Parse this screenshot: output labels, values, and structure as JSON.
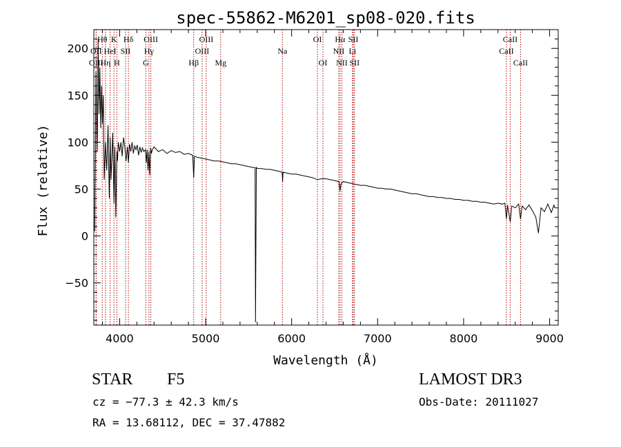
{
  "chart_data": {
    "type": "line",
    "title": "spec-55862-M6201_sp08-020.fits",
    "xlabel": "Wavelength (Å)",
    "ylabel": "Flux (relative)",
    "xlim": [
      3700,
      9100
    ],
    "ylim": [
      -95,
      220
    ],
    "x_ticks": [
      4000,
      5000,
      6000,
      7000,
      8000,
      9000
    ],
    "y_ticks": [
      -50,
      0,
      50,
      100,
      150,
      200
    ],
    "grid": false,
    "series": [
      {
        "name": "spectrum",
        "x": [
          3710,
          3725,
          3740,
          3750,
          3760,
          3770,
          3780,
          3790,
          3800,
          3810,
          3820,
          3835,
          3850,
          3865,
          3880,
          3890,
          3900,
          3910,
          3920,
          3934,
          3945,
          3955,
          3968,
          3975,
          3985,
          4000,
          4015,
          4030,
          4045,
          4060,
          4075,
          4090,
          4102,
          4115,
          4130,
          4145,
          4160,
          4175,
          4190,
          4205,
          4220,
          4235,
          4250,
          4265,
          4280,
          4300,
          4310,
          4320,
          4330,
          4340,
          4350,
          4360,
          4370,
          4380,
          4400,
          4450,
          4500,
          4550,
          4600,
          4650,
          4700,
          4750,
          4800,
          4850,
          4861,
          4870,
          4900,
          4950,
          5000,
          5050,
          5100,
          5150,
          5200,
          5250,
          5300,
          5350,
          5400,
          5450,
          5500,
          5550,
          5575,
          5580,
          5590,
          5600,
          5650,
          5700,
          5750,
          5800,
          5850,
          5890,
          5895,
          5900,
          5950,
          6000,
          6050,
          6100,
          6150,
          6200,
          6250,
          6300,
          6350,
          6400,
          6450,
          6500,
          6550,
          6563,
          6575,
          6600,
          6650,
          6700,
          6750,
          6800,
          6850,
          6900,
          6950,
          7000,
          7050,
          7100,
          7150,
          7200,
          7250,
          7300,
          7350,
          7400,
          7450,
          7500,
          7550,
          7600,
          7650,
          7700,
          7750,
          7800,
          7850,
          7900,
          7950,
          8000,
          8050,
          8100,
          8150,
          8200,
          8250,
          8300,
          8350,
          8400,
          8450,
          8480,
          8498,
          8510,
          8542,
          8560,
          8600,
          8640,
          8662,
          8680,
          8720,
          8760,
          8800,
          8840,
          8870,
          8900,
          8940,
          8980,
          9020,
          9050,
          9060
        ],
        "values": [
          5,
          175,
          90,
          210,
          130,
          180,
          115,
          160,
          120,
          150,
          60,
          100,
          70,
          118,
          40,
          105,
          60,
          85,
          110,
          35,
          95,
          20,
          90,
          80,
          100,
          90,
          100,
          85,
          105,
          95,
          80,
          95,
          78,
          98,
          90,
          100,
          88,
          96,
          92,
          97,
          86,
          95,
          89,
          94,
          90,
          92,
          78,
          92,
          70,
          90,
          65,
          94,
          88,
          92,
          95,
          90,
          92,
          88,
          91,
          89,
          90,
          87,
          88,
          86,
          62,
          85,
          84,
          83,
          82,
          81,
          80,
          80,
          79,
          78,
          77,
          77,
          76,
          75,
          74,
          73,
          73,
          -92,
          73,
          72,
          72,
          71,
          71,
          70,
          69,
          68,
          58,
          68,
          67,
          66,
          66,
          65,
          64,
          63,
          62,
          60,
          61,
          61,
          60,
          59,
          58,
          48,
          56,
          58,
          57,
          56,
          55,
          54,
          54,
          53,
          52,
          51,
          51,
          50,
          50,
          49,
          48,
          47,
          46,
          45,
          45,
          44,
          43,
          42,
          42,
          41,
          41,
          40,
          40,
          39,
          39,
          38,
          38,
          37,
          37,
          36,
          36,
          35,
          34,
          35,
          34,
          35,
          18,
          33,
          15,
          32,
          30,
          34,
          18,
          32,
          28,
          33,
          27,
          20,
          3,
          30,
          26,
          34,
          25,
          33,
          30
        ]
      }
    ],
    "line_markers": [
      {
        "label": "Hθ",
        "wavelength": 3798,
        "row": 1
      },
      {
        "label": "K",
        "wavelength": 3934,
        "row": 1
      },
      {
        "label": "Hδ",
        "wavelength": 4102,
        "row": 1
      },
      {
        "label": "OII",
        "wavelength": 3727,
        "row": 2
      },
      {
        "label": "HeI",
        "wavelength": 3889,
        "row": 2
      },
      {
        "label": "SII",
        "wavelength": 4069,
        "row": 2
      },
      {
        "label": "OIII",
        "wavelength": 4363,
        "row": 1
      },
      {
        "label": "Hγ",
        "wavelength": 4341,
        "row": 2
      },
      {
        "label": "OIII",
        "wavelength": 3726,
        "row": 3
      },
      {
        "label": "Hη",
        "wavelength": 3835,
        "row": 3
      },
      {
        "label": "H",
        "wavelength": 3968,
        "row": 3
      },
      {
        "label": "G",
        "wavelength": 4304,
        "row": 3
      },
      {
        "label": "Hβ",
        "wavelength": 4861,
        "row": 3
      },
      {
        "label": "OIII",
        "wavelength": 4959,
        "row": 2
      },
      {
        "label": "OIII",
        "wavelength": 5007,
        "row": 1
      },
      {
        "label": "Mg",
        "wavelength": 5175,
        "row": 3
      },
      {
        "label": "Na",
        "wavelength": 5893,
        "row": 2
      },
      {
        "label": "OI",
        "wavelength": 6300,
        "row": 1
      },
      {
        "label": "OI",
        "wavelength": 6364,
        "row": 3
      },
      {
        "label": "Hα",
        "wavelength": 6563,
        "row": 1
      },
      {
        "label": "NII",
        "wavelength": 6548,
        "row": 2
      },
      {
        "label": "NII",
        "wavelength": 6584,
        "row": 3
      },
      {
        "label": "SII",
        "wavelength": 6717,
        "row": 1
      },
      {
        "label": "Li",
        "wavelength": 6708,
        "row": 2
      },
      {
        "label": "SII",
        "wavelength": 6731,
        "row": 3
      },
      {
        "label": "CaII",
        "wavelength": 8542,
        "row": 1
      },
      {
        "label": "CaII",
        "wavelength": 8498,
        "row": 2
      },
      {
        "label": "CaII",
        "wavelength": 8662,
        "row": 3
      }
    ],
    "colors": {
      "spectrum": "#000000",
      "marker": "#b00000"
    }
  },
  "info": {
    "class_label": "STAR",
    "subclass": "F5",
    "survey": "LAMOST DR3",
    "cz": "cz = −77.3 ± 42.3 km/s",
    "obs_date": "Obs-Date: 20111027",
    "coords": "RA =  13.68112, DEC =  37.47882"
  }
}
